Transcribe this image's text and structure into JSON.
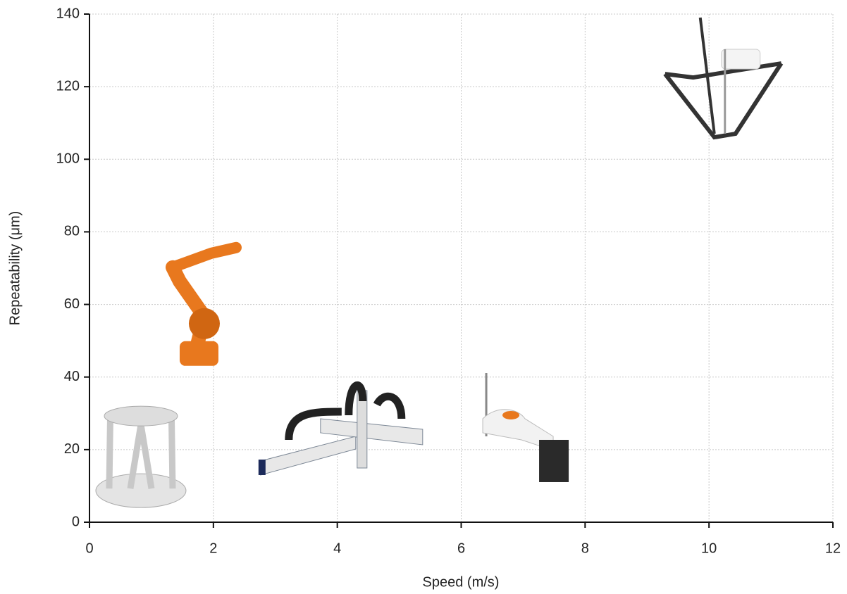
{
  "chart_data": {
    "type": "scatter",
    "x_label": "Speed (m/s)",
    "y_label": "Repeatability (μm)",
    "x": [
      0.83,
      1.74,
      4.07,
      7.03,
      10.2
    ],
    "values": [
      18,
      58.6,
      25.6,
      25.6,
      120.6
    ],
    "colors": [
      "#c8c8c8",
      "#e8781e",
      "#7d8896",
      "#2a2a2a",
      "#333333"
    ],
    "xlim": [
      0,
      12
    ],
    "xticks": [
      0,
      2,
      4,
      6,
      8,
      10,
      12
    ],
    "ylim": [
      0,
      140
    ],
    "yticks": [
      0,
      20,
      40,
      60,
      80,
      100,
      120,
      140
    ],
    "grid": true
  }
}
